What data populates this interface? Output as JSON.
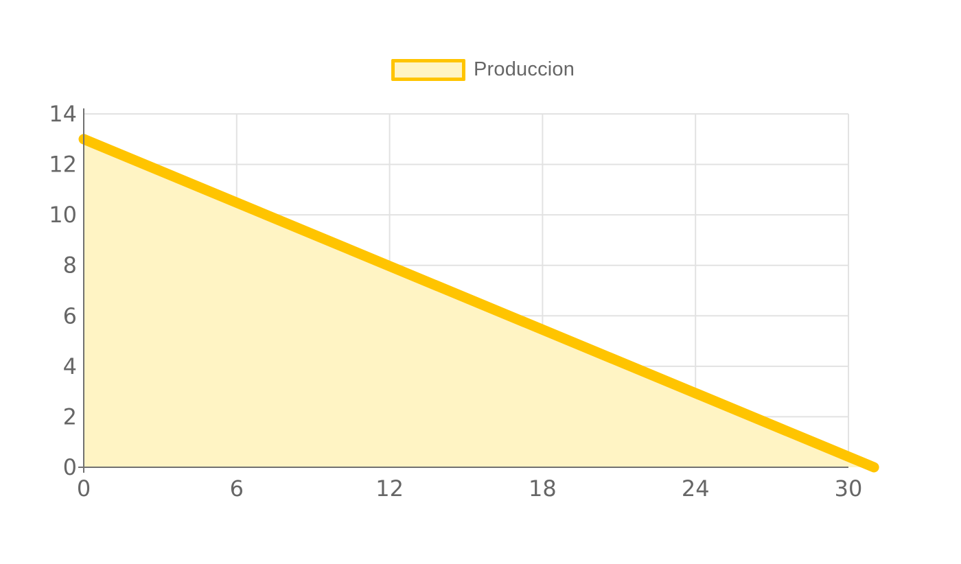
{
  "chart_data": {
    "type": "area",
    "series": [
      {
        "name": "Produccion",
        "x": [
          0,
          31
        ],
        "y": [
          13,
          0
        ]
      }
    ],
    "xticks": [
      0,
      6,
      12,
      18,
      24,
      30
    ],
    "yticks": [
      0,
      2,
      4,
      6,
      8,
      10,
      12,
      14
    ],
    "xlim": [
      0,
      30
    ],
    "ylim": [
      0,
      14
    ],
    "grid": true,
    "legend": "top-center",
    "colors": {
      "line": "#ffc400",
      "fill": "#fff4c4",
      "grid": "#e2e2e2",
      "axis": "#666666",
      "tick_text": "#666666"
    }
  }
}
